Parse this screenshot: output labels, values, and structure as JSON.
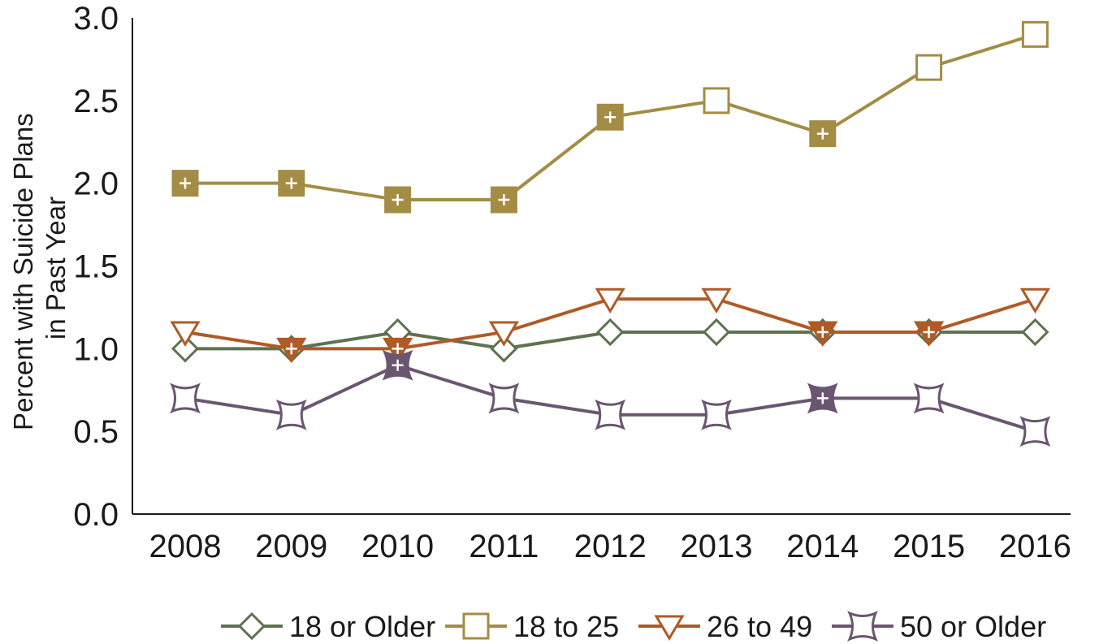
{
  "chart_data": {
    "type": "line",
    "ylabel": [
      "Percent with Suicide Plans",
      "in Past Year"
    ],
    "xlabel": "",
    "categories": [
      "2008",
      "2009",
      "2010",
      "2011",
      "2012",
      "2013",
      "2014",
      "2015",
      "2016"
    ],
    "ylim": [
      0.0,
      3.0
    ],
    "yticks": [
      "0.0",
      "0.5",
      "1.0",
      "1.5",
      "2.0",
      "2.5",
      "3.0"
    ],
    "grid": false,
    "legend_position": "bottom",
    "series": [
      {
        "name": "18 or Older",
        "marker": "diamond",
        "color": "#5e7252",
        "values": [
          1.0,
          1.0,
          1.1,
          1.0,
          1.1,
          1.1,
          1.1,
          1.1,
          1.1
        ],
        "significant": [
          false,
          false,
          false,
          false,
          false,
          false,
          false,
          false,
          false
        ]
      },
      {
        "name": "18 to 25",
        "marker": "square",
        "color": "#a38d45",
        "values": [
          2.0,
          2.0,
          1.9,
          1.9,
          2.4,
          2.5,
          2.3,
          2.7,
          2.9
        ],
        "significant": [
          true,
          true,
          true,
          true,
          true,
          false,
          true,
          false,
          false
        ]
      },
      {
        "name": "26 to 49",
        "marker": "triangle-down",
        "color": "#b05a25",
        "values": [
          1.1,
          1.0,
          1.0,
          1.1,
          1.3,
          1.3,
          1.1,
          1.1,
          1.3
        ],
        "significant": [
          false,
          true,
          true,
          false,
          false,
          false,
          true,
          true,
          false
        ]
      },
      {
        "name": "50 or Older",
        "marker": "concave-square",
        "color": "#6a5670",
        "values": [
          0.7,
          0.6,
          0.9,
          0.7,
          0.6,
          0.6,
          0.7,
          0.7,
          0.5
        ],
        "significant": [
          false,
          false,
          true,
          false,
          false,
          false,
          true,
          false,
          false
        ]
      }
    ]
  }
}
